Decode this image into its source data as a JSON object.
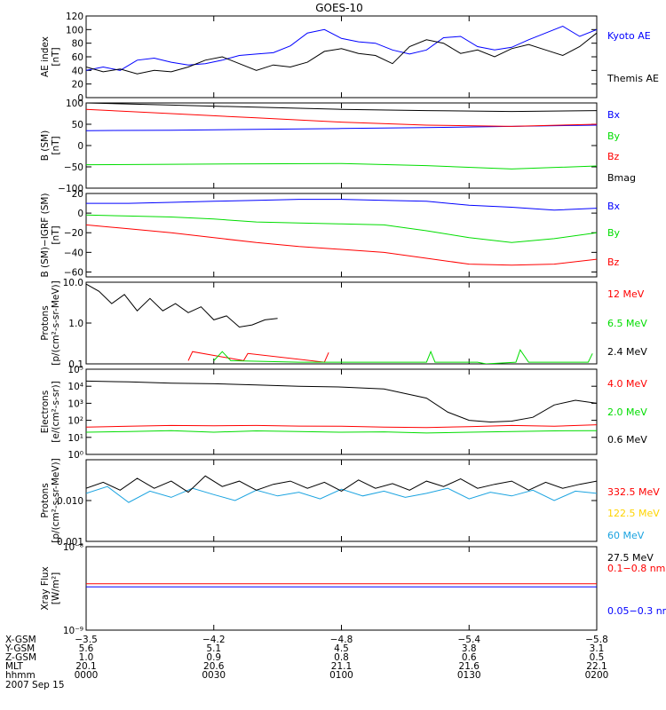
{
  "title": "GOES-10",
  "colors": {
    "black": "#000000",
    "blue": "#0000ff",
    "red": "#ff0000",
    "green": "#00dd00",
    "cyan": "#1aa3e0",
    "yellow": "#ffd400"
  },
  "chart_data": [
    {
      "type": "line",
      "id": "ae",
      "ylabel": [
        "AE index",
        "[nT]"
      ],
      "ylim": [
        0,
        120
      ],
      "yticks": [
        0,
        20,
        40,
        60,
        80,
        100,
        120
      ],
      "ytick_labels": [
        "0",
        "20",
        "40",
        "60",
        "80",
        "100",
        "120"
      ],
      "xlim": [
        0,
        120
      ],
      "series": [
        {
          "name": "Kyoto AE",
          "color": "blue",
          "x": [
            0,
            4,
            8,
            12,
            16,
            20,
            24,
            28,
            32,
            36,
            40,
            44,
            48,
            52,
            56,
            60,
            64,
            68,
            72,
            76,
            80,
            84,
            88,
            92,
            96,
            100,
            104,
            108,
            112,
            116,
            120
          ],
          "values": [
            40,
            45,
            40,
            55,
            58,
            52,
            48,
            50,
            55,
            62,
            64,
            66,
            76,
            95,
            100,
            87,
            82,
            80,
            70,
            64,
            70,
            88,
            90,
            75,
            70,
            74,
            85,
            95,
            105,
            90,
            100
          ]
        },
        {
          "name": "Themis AE",
          "color": "black",
          "x": [
            0,
            4,
            8,
            12,
            16,
            20,
            24,
            28,
            32,
            36,
            40,
            44,
            48,
            52,
            56,
            60,
            64,
            68,
            72,
            76,
            80,
            84,
            88,
            92,
            96,
            100,
            104,
            108,
            112,
            116,
            120
          ],
          "values": [
            45,
            38,
            42,
            35,
            40,
            38,
            45,
            55,
            60,
            50,
            40,
            48,
            45,
            52,
            68,
            72,
            65,
            62,
            50,
            75,
            85,
            80,
            65,
            70,
            60,
            72,
            78,
            70,
            62,
            75,
            95
          ]
        }
      ]
    },
    {
      "type": "line",
      "id": "bsm",
      "ylabel": [
        "B (SM)",
        "[nT]"
      ],
      "ylim": [
        -100,
        100
      ],
      "yticks": [
        -100,
        -50,
        0,
        50,
        100
      ],
      "ytick_labels": [
        "−100",
        "−50",
        "0",
        "50",
        "100"
      ],
      "xlim": [
        0,
        120
      ],
      "series": [
        {
          "name": "Bx",
          "color": "blue",
          "x": [
            0,
            20,
            40,
            60,
            80,
            100,
            120
          ],
          "values": [
            35,
            36,
            38,
            40,
            42,
            45,
            48
          ]
        },
        {
          "name": "By",
          "color": "green",
          "x": [
            0,
            20,
            40,
            60,
            80,
            100,
            120
          ],
          "values": [
            -45,
            -44,
            -43,
            -42,
            -47,
            -55,
            -48
          ]
        },
        {
          "name": "Bz",
          "color": "red",
          "x": [
            0,
            20,
            40,
            60,
            80,
            100,
            120
          ],
          "values": [
            85,
            75,
            65,
            55,
            48,
            45,
            50
          ]
        },
        {
          "name": "Bmag",
          "color": "black",
          "x": [
            0,
            20,
            40,
            60,
            80,
            100,
            120
          ],
          "values": [
            100,
            95,
            90,
            85,
            82,
            80,
            82
          ]
        }
      ]
    },
    {
      "type": "line",
      "id": "bdiff",
      "ylabel": [
        "B (SM)−IGRF (SM)",
        "[nT]"
      ],
      "ylim": [
        -65,
        20
      ],
      "yticks": [
        -60,
        -40,
        -20,
        0,
        20
      ],
      "ytick_labels": [
        "−60",
        "−40",
        "−20",
        "0",
        "20"
      ],
      "xlim": [
        0,
        120
      ],
      "series": [
        {
          "name": "Bx",
          "color": "blue",
          "x": [
            0,
            10,
            20,
            30,
            40,
            50,
            60,
            70,
            80,
            90,
            100,
            110,
            120
          ],
          "values": [
            10,
            10,
            11,
            12,
            13,
            14,
            14,
            13,
            12,
            8,
            6,
            3,
            5
          ]
        },
        {
          "name": "By",
          "color": "green",
          "x": [
            0,
            10,
            20,
            30,
            40,
            50,
            60,
            70,
            80,
            90,
            100,
            110,
            120
          ],
          "values": [
            -2,
            -3,
            -4,
            -6,
            -9,
            -10,
            -11,
            -12,
            -18,
            -25,
            -30,
            -26,
            -20
          ]
        },
        {
          "name": "Bz",
          "color": "red",
          "x": [
            0,
            10,
            20,
            30,
            40,
            50,
            60,
            70,
            80,
            90,
            100,
            110,
            120
          ],
          "values": [
            -12,
            -16,
            -20,
            -25,
            -30,
            -34,
            -37,
            -40,
            -46,
            -52,
            -53,
            -52,
            -47
          ]
        }
      ]
    },
    {
      "type": "line",
      "id": "protons_low",
      "ylabel": [
        "Protons",
        "[p/(cm²-s-sr-MeV)]"
      ],
      "log": true,
      "ylim": [
        0.1,
        10
      ],
      "yticks": [
        0.1,
        1,
        10
      ],
      "ytick_labels": [
        "0.1",
        "1.0",
        "10.0"
      ],
      "xlim": [
        0,
        120
      ],
      "series": [
        {
          "name": "12 MeV",
          "color": "red",
          "x": [
            24,
            25,
            37,
            38,
            56,
            57
          ],
          "values": [
            0.12,
            0.2,
            0.12,
            0.18,
            0.11,
            0.19
          ]
        },
        {
          "name": "6.5 MeV",
          "color": "green",
          "x": [
            30,
            32,
            34,
            50,
            52,
            65,
            66,
            72,
            80,
            81,
            82,
            92,
            94,
            101,
            102,
            104,
            118,
            119
          ],
          "values": [
            0.12,
            0.2,
            0.12,
            0.11,
            0.11,
            0.11,
            0.11,
            0.11,
            0.11,
            0.2,
            0.11,
            0.11,
            0.1,
            0.11,
            0.22,
            0.11,
            0.11,
            0.18
          ]
        },
        {
          "name": "2.4 MeV",
          "color": "black",
          "x": [
            0,
            3,
            6,
            9,
            12,
            15,
            18,
            21,
            24,
            27,
            30,
            33,
            36,
            39,
            42,
            45
          ],
          "values": [
            9,
            6,
            3,
            5,
            2,
            4,
            2,
            3,
            1.8,
            2.5,
            1.2,
            1.5,
            0.8,
            0.9,
            1.2,
            1.3
          ]
        }
      ]
    },
    {
      "type": "line",
      "id": "electrons",
      "ylabel": [
        "Electrons",
        "[e/(cm²-s-sr)]"
      ],
      "log": true,
      "ylim": [
        1,
        100000
      ],
      "yticks": [
        1,
        10,
        100,
        1000,
        10000,
        100000
      ],
      "ytick_labels": [
        "10⁰",
        "10¹",
        "10²",
        "10³",
        "10⁴",
        "10⁵"
      ],
      "xlim": [
        0,
        120
      ],
      "series": [
        {
          "name": "4.0 MeV",
          "color": "red",
          "x": [
            0,
            10,
            20,
            30,
            40,
            50,
            60,
            70,
            80,
            90,
            100,
            110,
            120
          ],
          "values": [
            40,
            45,
            50,
            48,
            50,
            46,
            45,
            40,
            38,
            42,
            50,
            45,
            55
          ]
        },
        {
          "name": "2.0 MeV",
          "color": "green",
          "x": [
            0,
            10,
            20,
            30,
            40,
            50,
            60,
            70,
            80,
            90,
            100,
            110,
            120
          ],
          "values": [
            20,
            22,
            25,
            20,
            24,
            22,
            20,
            21,
            18,
            20,
            22,
            24,
            25
          ]
        },
        {
          "name": "0.6 MeV",
          "color": "black",
          "x": [
            0,
            10,
            20,
            30,
            40,
            50,
            60,
            70,
            80,
            85,
            90,
            95,
            100,
            105,
            110,
            115,
            120
          ],
          "values": [
            20000,
            18000,
            15000,
            14000,
            12000,
            10000,
            9000,
            7000,
            2000,
            300,
            100,
            80,
            90,
            150,
            800,
            1500,
            1000
          ]
        }
      ]
    },
    {
      "type": "line",
      "id": "protons_high",
      "ylabel": [
        "Protons",
        "[p/(cm²-s-sr-MeV)]"
      ],
      "log": true,
      "ylim": [
        0.001,
        0.1
      ],
      "yticks": [
        0.001,
        0.01,
        0.1
      ],
      "ytick_labels": [
        "0.001",
        "0.010",
        ""
      ],
      "xlim": [
        0,
        120
      ],
      "series": [
        {
          "name": "332.5 MeV",
          "color": "red",
          "x": [],
          "values": []
        },
        {
          "name": "122.5 MeV",
          "color": "yellow",
          "x": [],
          "values": []
        },
        {
          "name": "60 MeV",
          "color": "cyan",
          "x": [
            0,
            5,
            10,
            15,
            20,
            25,
            30,
            35,
            40,
            45,
            50,
            55,
            60,
            65,
            70,
            75,
            80,
            85,
            90,
            95,
            100,
            105,
            110,
            115,
            120
          ],
          "values": [
            0.015,
            0.022,
            0.009,
            0.017,
            0.012,
            0.02,
            0.014,
            0.01,
            0.018,
            0.013,
            0.016,
            0.011,
            0.019,
            0.013,
            0.017,
            0.012,
            0.015,
            0.02,
            0.011,
            0.016,
            0.013,
            0.018,
            0.01,
            0.017,
            0.015
          ]
        },
        {
          "name": "27.5 MeV",
          "color": "black",
          "x": [
            0,
            4,
            8,
            12,
            16,
            20,
            24,
            28,
            32,
            36,
            40,
            44,
            48,
            52,
            56,
            60,
            64,
            68,
            72,
            76,
            80,
            84,
            88,
            92,
            96,
            100,
            104,
            108,
            112,
            116,
            120
          ],
          "values": [
            0.02,
            0.028,
            0.018,
            0.035,
            0.02,
            0.03,
            0.016,
            0.04,
            0.022,
            0.03,
            0.018,
            0.025,
            0.03,
            0.02,
            0.028,
            0.017,
            0.032,
            0.02,
            0.026,
            0.018,
            0.03,
            0.022,
            0.034,
            0.02,
            0.025,
            0.03,
            0.018,
            0.028,
            0.02,
            0.025,
            0.03
          ]
        }
      ]
    },
    {
      "type": "line",
      "id": "xray",
      "ylabel": [
        "Xray  Flux",
        "[W/m²]"
      ],
      "log": true,
      "ylim": [
        1e-09,
        1e-08
      ],
      "yticks": [
        1e-09,
        1e-08
      ],
      "ytick_labels": [
        "10⁻⁹",
        "10⁻⁸"
      ],
      "xlim": [
        0,
        120
      ],
      "series": [
        {
          "name": "0.1−0.8 nm",
          "color": "red",
          "x": [
            0,
            120
          ],
          "values": [
            3.6e-09,
            3.6e-09
          ]
        },
        {
          "name": "0.05−0.3 nm",
          "color": "blue",
          "x": [
            0,
            120
          ],
          "values": [
            3.3e-09,
            3.3e-09
          ]
        }
      ]
    }
  ],
  "footer": {
    "row_labels": [
      "X-GSM",
      "Y-GSM",
      "Z-GSM",
      "MLT",
      "hhmm"
    ],
    "columns": [
      {
        "x": "−3.5",
        "y": "5.6",
        "z": "1.0",
        "mlt": "20.1",
        "hhmm": "0000"
      },
      {
        "x": "−4.2",
        "y": "5.1",
        "z": "0.9",
        "mlt": "20.6",
        "hhmm": "0030"
      },
      {
        "x": "−4.8",
        "y": "4.5",
        "z": "0.8",
        "mlt": "21.1",
        "hhmm": "0100"
      },
      {
        "x": "−5.4",
        "y": "3.8",
        "z": "0.6",
        "mlt": "21.6",
        "hhmm": "0130"
      },
      {
        "x": "−5.8",
        "y": "3.1",
        "z": "0.5",
        "mlt": "22.1",
        "hhmm": "0200"
      }
    ],
    "date": "2007 Sep 15"
  }
}
